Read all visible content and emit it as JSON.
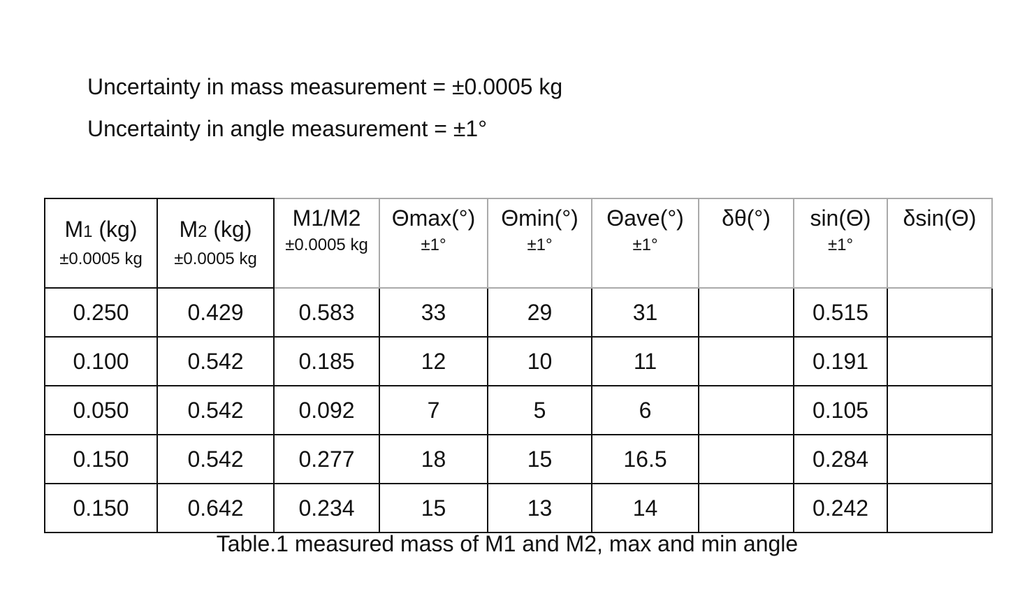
{
  "uncertainty": {
    "mass": "Uncertainty in mass measurement = ±0.0005 kg",
    "angle": "Uncertainty in angle measurement = ±1°"
  },
  "table": {
    "headers": [
      {
        "main": "M",
        "sub_index": "1",
        "main_suffix": " (kg)",
        "sub": "±0.0005 kg"
      },
      {
        "main": "M",
        "sub_index": "2",
        "main_suffix": " (kg)",
        "sub": "±0.0005 kg"
      },
      {
        "main_full": "M1/M2",
        "sub": "±0.0005 kg"
      },
      {
        "main_full": "Θmax(°)",
        "sub": "±1°"
      },
      {
        "main_full": "Θmin(°)",
        "sub": "±1°"
      },
      {
        "main_full": "Θave(°)",
        "sub": "±1°"
      },
      {
        "main_full": "δθ(°)",
        "sub": ""
      },
      {
        "main_full": "sin(Θ)",
        "sub": "±1°"
      },
      {
        "main_full": "δsin(Θ)",
        "sub": ""
      }
    ],
    "rows": [
      [
        "0.250",
        "0.429",
        "0.583",
        "33",
        "29",
        "31",
        "",
        "0.515",
        ""
      ],
      [
        "0.100",
        "0.542",
        "0.185",
        "12",
        "10",
        "11",
        "",
        "0.191",
        ""
      ],
      [
        "0.050",
        "0.542",
        "0.092",
        "7",
        "5",
        "6",
        "",
        "0.105",
        ""
      ],
      [
        "0.150",
        "0.542",
        "0.277",
        "18",
        "15",
        "16.5",
        "",
        "0.284",
        ""
      ],
      [
        "0.150",
        "0.642",
        "0.234",
        "15",
        "13",
        "14",
        "",
        "0.242",
        ""
      ]
    ]
  },
  "caption": "Table.1 measured mass of M1 and M2, max and min angle"
}
